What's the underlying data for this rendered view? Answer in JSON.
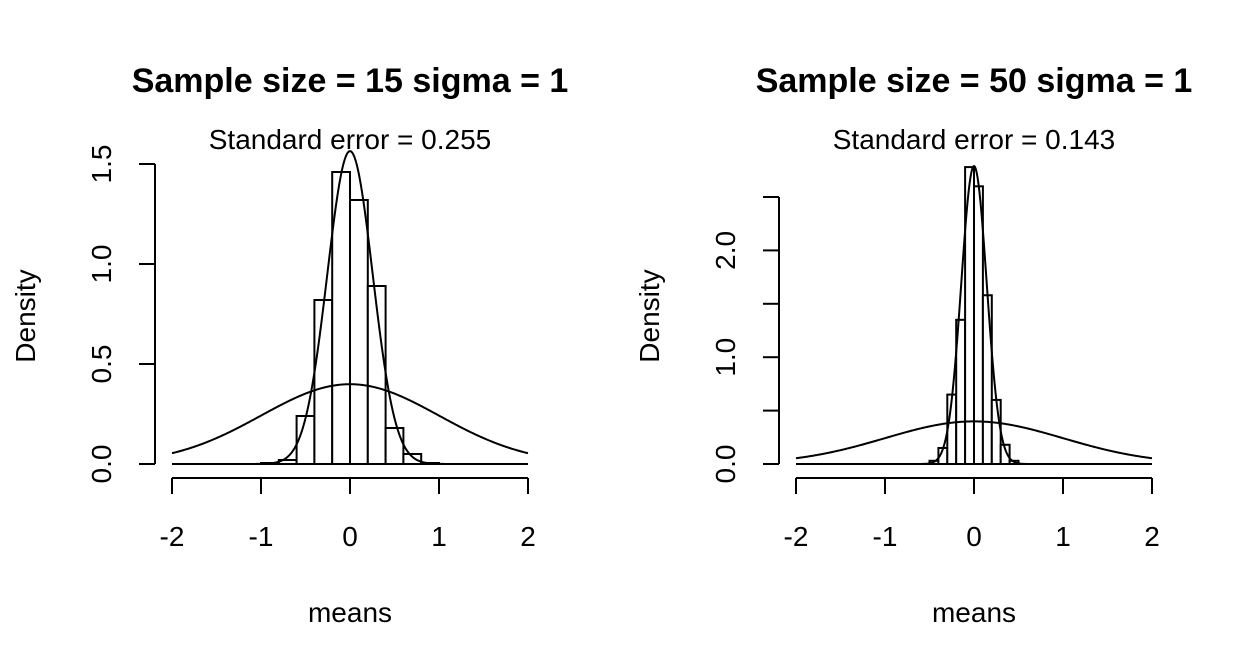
{
  "chart_data": [
    {
      "type": "bar",
      "title": "Sample size =  15  sigma =  1",
      "subtitle": "Standard error =  0.255",
      "xlabel": "means",
      "ylabel": "Density",
      "xlim": [
        -2,
        2
      ],
      "ylim": [
        0,
        1.5
      ],
      "x_ticks": [
        "-2",
        "-1",
        "0",
        "1",
        "2"
      ],
      "x_tick_values": [
        -2,
        -1,
        0,
        1,
        2
      ],
      "y_ticks": [
        "0.0",
        "0.5",
        "1.0",
        "1.5"
      ],
      "y_tick_values": [
        0,
        0.5,
        1.0,
        1.5
      ],
      "bin_width": 0.2,
      "bins": [
        {
          "x0": -1.0,
          "x1": -0.8,
          "value": 0.005
        },
        {
          "x0": -0.8,
          "x1": -0.6,
          "value": 0.02
        },
        {
          "x0": -0.6,
          "x1": -0.4,
          "value": 0.24
        },
        {
          "x0": -0.4,
          "x1": -0.2,
          "value": 0.82
        },
        {
          "x0": -0.2,
          "x1": 0.0,
          "value": 1.46
        },
        {
          "x0": 0.0,
          "x1": 0.2,
          "value": 1.32
        },
        {
          "x0": 0.2,
          "x1": 0.4,
          "value": 0.89
        },
        {
          "x0": 0.4,
          "x1": 0.6,
          "value": 0.18
        },
        {
          "x0": 0.6,
          "x1": 0.8,
          "value": 0.05
        },
        {
          "x0": 0.8,
          "x1": 1.0,
          "value": 0.005
        }
      ],
      "curves": [
        {
          "distribution": "normal",
          "mean": 0,
          "sd": 1
        },
        {
          "distribution": "normal",
          "mean": 0,
          "sd": 0.255
        }
      ],
      "grid": false
    },
    {
      "type": "bar",
      "title": "Sample size =  50  sigma =  1",
      "subtitle": "Standard error =  0.143",
      "xlabel": "means",
      "ylabel": "Density",
      "xlim": [
        -2,
        2
      ],
      "ylim": [
        0,
        2.5
      ],
      "x_ticks": [
        "-2",
        "-1",
        "0",
        "1",
        "2"
      ],
      "x_tick_values": [
        -2,
        -1,
        0,
        1,
        2
      ],
      "y_ticks": [
        "0.0",
        "1.0",
        "2.0"
      ],
      "y_tick_values": [
        0,
        1.0,
        2.0
      ],
      "y_minor_tick_values": [
        0.5,
        1.5,
        2.5
      ],
      "bin_width": 0.1,
      "bins": [
        {
          "x0": -0.5,
          "x1": -0.4,
          "value": 0.03
        },
        {
          "x0": -0.4,
          "x1": -0.3,
          "value": 0.15
        },
        {
          "x0": -0.3,
          "x1": -0.2,
          "value": 0.65
        },
        {
          "x0": -0.2,
          "x1": -0.1,
          "value": 1.35
        },
        {
          "x0": -0.1,
          "x1": 0.0,
          "value": 2.78
        },
        {
          "x0": 0.0,
          "x1": 0.1,
          "value": 2.6
        },
        {
          "x0": 0.1,
          "x1": 0.2,
          "value": 1.58
        },
        {
          "x0": 0.2,
          "x1": 0.3,
          "value": 0.6
        },
        {
          "x0": 0.3,
          "x1": 0.4,
          "value": 0.18
        },
        {
          "x0": 0.4,
          "x1": 0.5,
          "value": 0.03
        }
      ],
      "curves": [
        {
          "distribution": "normal",
          "mean": 0,
          "sd": 1
        },
        {
          "distribution": "normal",
          "mean": 0,
          "sd": 0.143
        }
      ],
      "grid": false
    }
  ]
}
